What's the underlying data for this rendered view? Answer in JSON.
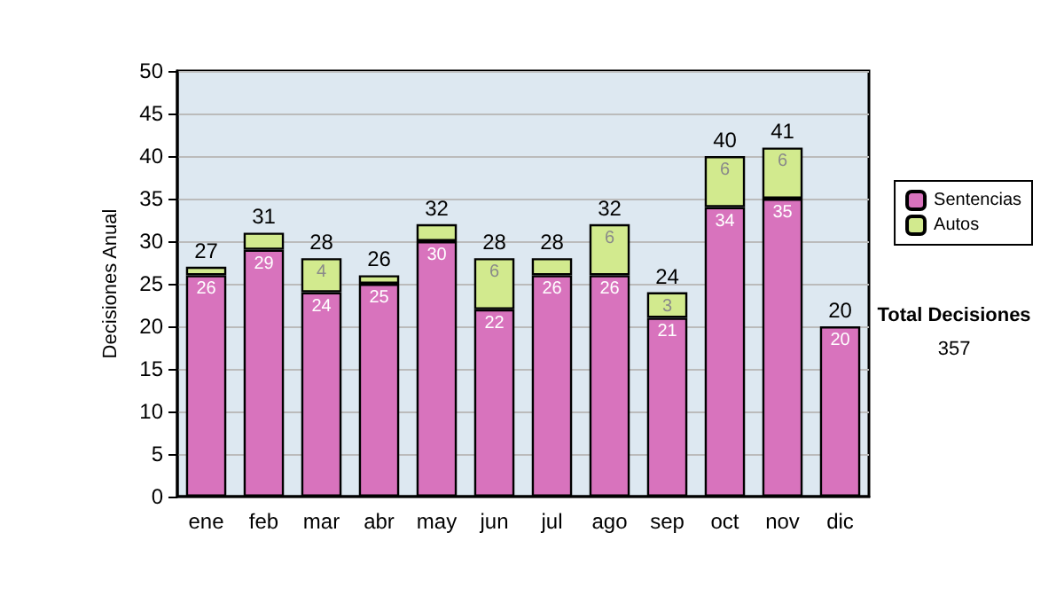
{
  "chart_data": {
    "type": "bar",
    "ylabel": "Decisiones Anual",
    "categories": [
      "ene",
      "feb",
      "mar",
      "abr",
      "may",
      "jun",
      "jul",
      "ago",
      "sep",
      "oct",
      "nov",
      "dic"
    ],
    "stacked": true,
    "series": [
      {
        "name": "Sentencias",
        "color": "#d873bd",
        "values": [
          26,
          29,
          24,
          25,
          30,
          22,
          26,
          26,
          21,
          34,
          35,
          20
        ],
        "value_labels": [
          "26",
          "29",
          "24",
          "25",
          "30",
          "22",
          "26",
          "26",
          "21",
          "34",
          "35",
          "20"
        ]
      },
      {
        "name": "Autos",
        "color": "#d2ea8e",
        "values": [
          1,
          2,
          4,
          1,
          2,
          6,
          2,
          6,
          3,
          6,
          6,
          0
        ],
        "value_labels": [
          null,
          null,
          "4",
          null,
          null,
          "6",
          null,
          "6",
          "3",
          "6",
          "6",
          null
        ]
      }
    ],
    "totals": [
      "27",
      "31",
      "28",
      "26",
      "32",
      "28",
      "28",
      "32",
      "24",
      "40",
      "41",
      "20"
    ],
    "ylim": [
      0,
      50
    ],
    "yticks": [
      0,
      5,
      10,
      15,
      20,
      25,
      30,
      35,
      40,
      45,
      50
    ],
    "grid": "y",
    "legend": "right",
    "annotations": [
      "Total Decisiones",
      "357"
    ]
  }
}
